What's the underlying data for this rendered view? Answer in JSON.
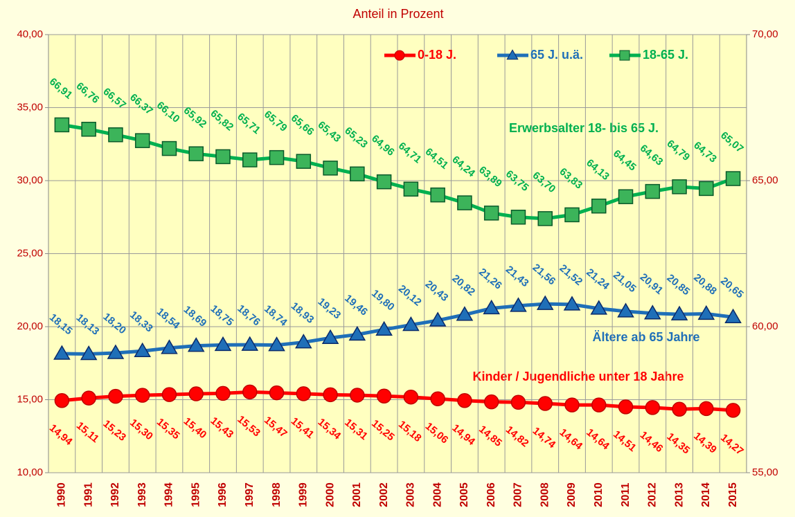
{
  "chart_data": {
    "type": "line",
    "title": "Anteil in Prozent",
    "categories": [
      "1990",
      "1991",
      "1992",
      "1993",
      "1994",
      "1995",
      "1996",
      "1997",
      "1998",
      "1999",
      "2000",
      "2001",
      "2002",
      "2003",
      "2004",
      "2005",
      "2006",
      "2007",
      "2008",
      "2009",
      "2010",
      "2011",
      "2012",
      "2013",
      "2014",
      "2015"
    ],
    "series": [
      {
        "name": "0-18 J.",
        "color": "#ff0000",
        "marker": "circle",
        "values": [
          14.94,
          15.11,
          15.23,
          15.3,
          15.35,
          15.4,
          15.43,
          15.53,
          15.47,
          15.41,
          15.34,
          15.31,
          15.25,
          15.18,
          15.06,
          14.94,
          14.85,
          14.82,
          14.74,
          14.64,
          14.64,
          14.51,
          14.46,
          14.35,
          14.39,
          14.27
        ],
        "value_labels": [
          "14,94",
          "15,11",
          "15,23",
          "15,30",
          "15,35",
          "15,40",
          "15,43",
          "15,53",
          "15,47",
          "15,41",
          "15,34",
          "15,31",
          "15,25",
          "15,18",
          "15,06",
          "14,94",
          "14,85",
          "14,82",
          "14,74",
          "14,64",
          "14,64",
          "14,51",
          "14,46",
          "14,35",
          "14,39",
          "14,27"
        ]
      },
      {
        "name": "65 J. u.ä.",
        "color": "#1f6fb8",
        "marker": "triangle",
        "values": [
          18.15,
          18.13,
          18.2,
          18.33,
          18.54,
          18.69,
          18.75,
          18.76,
          18.74,
          18.93,
          19.23,
          19.46,
          19.8,
          20.12,
          20.43,
          20.82,
          21.26,
          21.43,
          21.56,
          21.52,
          21.24,
          21.05,
          20.91,
          20.85,
          20.88,
          20.65
        ],
        "value_labels": [
          "18,15",
          "18,13",
          "18,20",
          "18,33",
          "18,54",
          "18,69",
          "18,75",
          "18,76",
          "18,74",
          "18,93",
          "19,23",
          "19,46",
          "19,80",
          "20,12",
          "20,43",
          "20,82",
          "21,26",
          "21,43",
          "21,56",
          "21,52",
          "21,24",
          "21,05",
          "20,91",
          "20,85",
          "20,88",
          "20,65"
        ]
      },
      {
        "name": "18-65 J.",
        "color": "#00b050",
        "marker": "square",
        "axis": "y2",
        "values": [
          66.91,
          66.76,
          66.57,
          66.37,
          66.1,
          65.92,
          65.82,
          65.71,
          65.79,
          65.66,
          65.43,
          65.23,
          64.96,
          64.71,
          64.51,
          64.24,
          63.89,
          63.75,
          63.7,
          63.83,
          64.13,
          64.45,
          64.63,
          64.79,
          64.73,
          65.07
        ],
        "value_labels": [
          "66,91",
          "66,76",
          "66,57",
          "66,37",
          "66,10",
          "65,92",
          "65,82",
          "65,71",
          "65,79",
          "65,66",
          "65,43",
          "65,23",
          "64,96",
          "64,71",
          "64,51",
          "64,24",
          "63,89",
          "63,75",
          "63,70",
          "63,83",
          "64,13",
          "64,45",
          "64,63",
          "64,79",
          "64,73",
          "65,07"
        ]
      }
    ],
    "annotations": [
      "Erwerbsalter 18- bis 65 J.",
      "Ältere ab 65 Jahre",
      "Kinder / Jugendliche unter 18 Jahre"
    ],
    "ylim": [
      10,
      40
    ],
    "yticks": [
      {
        "value": 10,
        "label": "10,00"
      },
      {
        "value": 15,
        "label": "15,00"
      },
      {
        "value": 20,
        "label": "20,00"
      },
      {
        "value": 25,
        "label": "25,00"
      },
      {
        "value": 30,
        "label": "30,00"
      },
      {
        "value": 35,
        "label": "35,00"
      },
      {
        "value": 40,
        "label": "40,00"
      }
    ],
    "y2lim": [
      55,
      70
    ],
    "y2ticks": [
      {
        "value": 55,
        "label": "55,00"
      },
      {
        "value": 60,
        "label": "60,00"
      },
      {
        "value": 65,
        "label": "65,00"
      },
      {
        "value": 70,
        "label": "70,00"
      }
    ],
    "grid": true,
    "legend": "top"
  }
}
